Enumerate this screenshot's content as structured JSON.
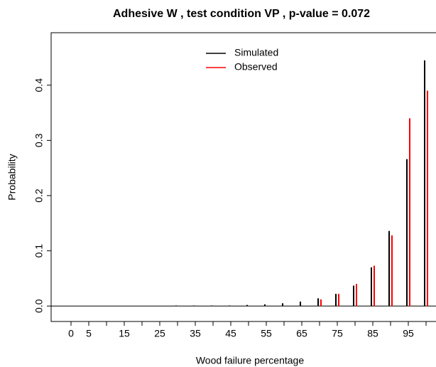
{
  "chart_data": {
    "type": "bar",
    "title": "Adhesive W , test condition VP , p-value = 0.072",
    "x_label": "Wood failure percentage",
    "y_label": "Probability",
    "categories": [
      "0",
      "5",
      null,
      "15",
      null,
      "25",
      null,
      "35",
      null,
      "45",
      null,
      "55",
      null,
      "65",
      null,
      "75",
      null,
      "85",
      null,
      "95",
      null
    ],
    "series": [
      {
        "name": "Simulated",
        "color": "#000000",
        "values": [
          0,
          0,
          0,
          0,
          0,
          0,
          0.001,
          0.001,
          0.001,
          0.001,
          0.002,
          0.003,
          0.005,
          0.008,
          0.014,
          0.022,
          0.037,
          0.07,
          0.136,
          0.266,
          0.445
        ]
      },
      {
        "name": "Observed",
        "color": "#ff0000",
        "values": [
          0,
          0,
          0,
          0,
          0,
          0,
          0,
          0,
          0,
          0,
          0,
          0,
          0,
          0,
          0.012,
          0.022,
          0.04,
          0.073,
          0.128,
          0.34,
          0.39
        ]
      }
    ],
    "ylim": [
      -0.028,
      0.495
    ],
    "yticks": [
      {
        "value": 0,
        "label": "0.0"
      },
      0.1,
      0.2,
      0.3,
      0.4
    ],
    "grid": false,
    "legend": "top"
  }
}
